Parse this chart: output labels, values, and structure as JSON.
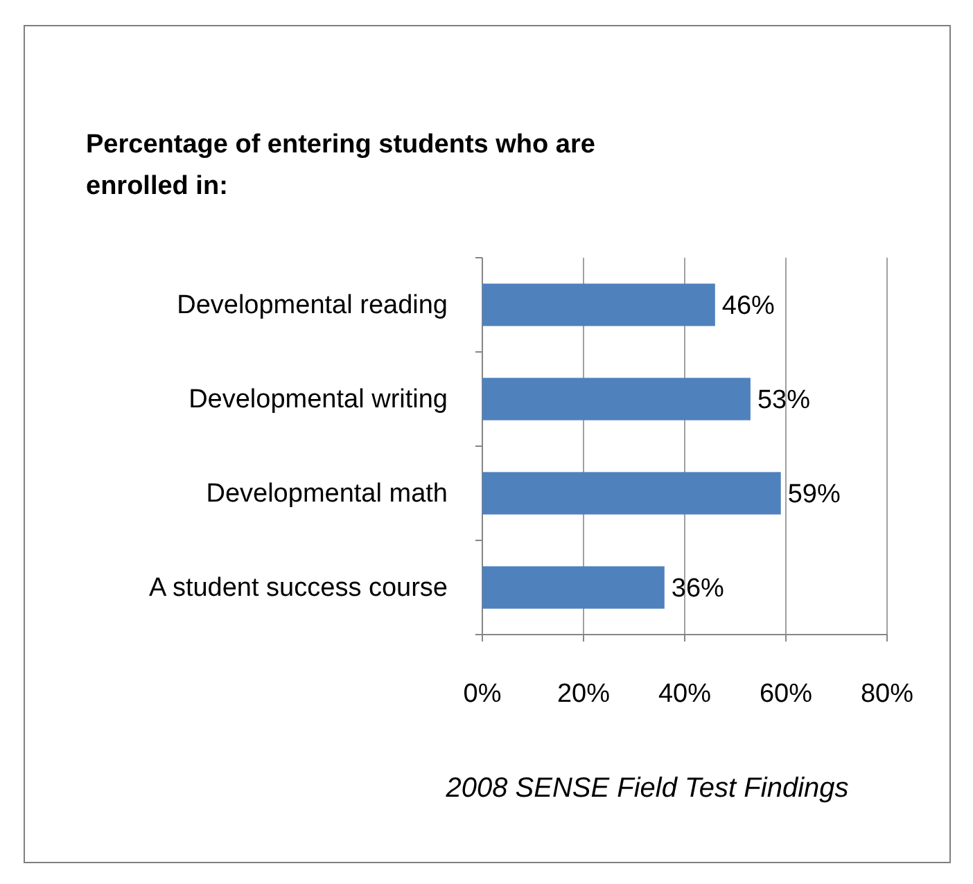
{
  "chart_data": {
    "type": "bar",
    "orientation": "horizontal",
    "title": "Percentage of entering students who are enrolled in:",
    "categories": [
      "Developmental reading",
      "Developmental writing",
      "Developmental math",
      "A student success course"
    ],
    "values": [
      46,
      53,
      59,
      36
    ],
    "color": "#4f81bd",
    "xlim": [
      0,
      80
    ],
    "xticks": [
      {
        "value": 0,
        "label": "0%"
      },
      {
        "value": 20,
        "label": "20%"
      },
      {
        "value": 40,
        "label": "40%"
      },
      {
        "value": 60,
        "label": "60%"
      },
      {
        "value": 80,
        "label": "80%"
      }
    ],
    "value_labels": [
      "46%",
      "53%",
      "59%",
      "36%"
    ],
    "grid": "x",
    "annotations": [
      "2008 SENSE Field Test Findings"
    ]
  }
}
